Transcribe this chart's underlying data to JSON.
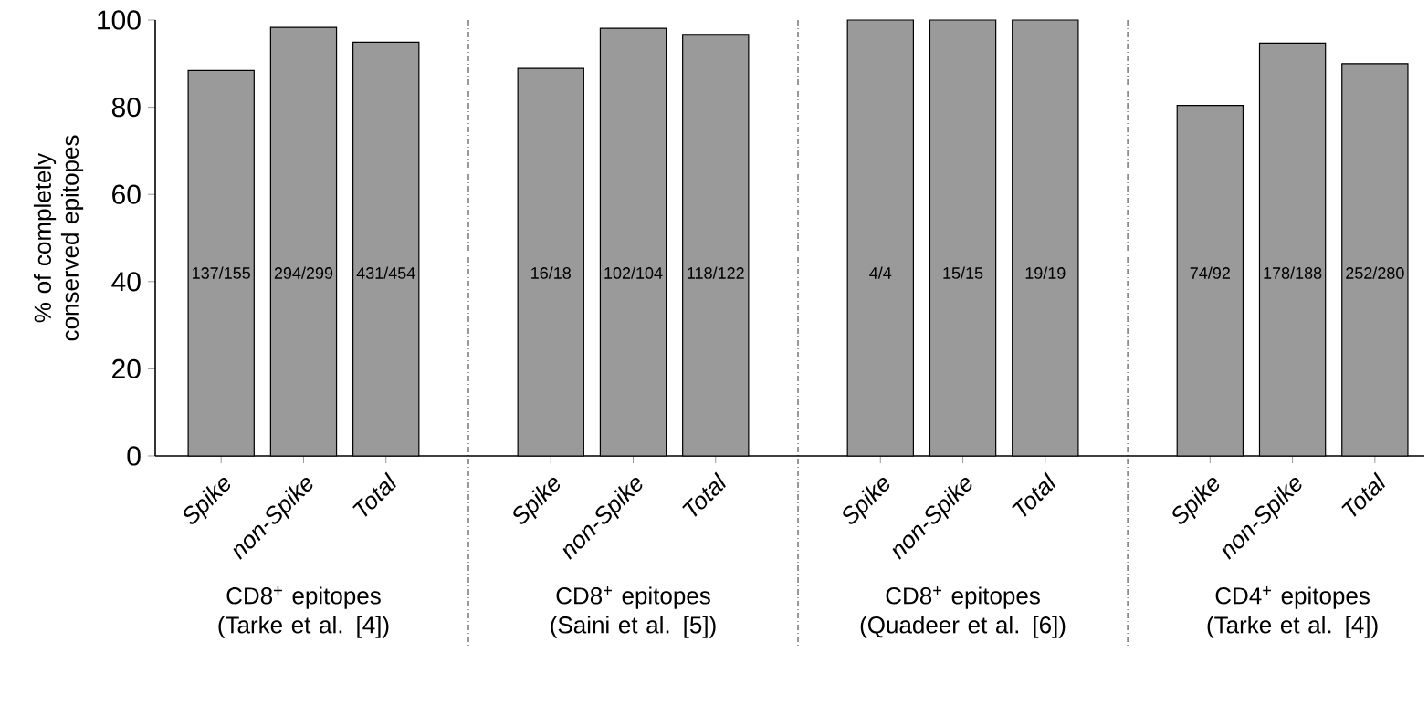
{
  "chart_data": {
    "type": "bar",
    "ylabel": "% of completely conserved epitopes",
    "categories": [
      "Spike",
      "non-Spike",
      "Total",
      null,
      "Spike",
      "non-Spike",
      "Total",
      null,
      "Spike",
      "non-Spike",
      "Total",
      null,
      "Spike",
      "non-Spike",
      "Total"
    ],
    "values": [
      88.4,
      98.3,
      94.9,
      null,
      88.9,
      98.1,
      96.7,
      null,
      100,
      100,
      100,
      null,
      80.4,
      94.7,
      90.0
    ],
    "color": "#9a9a9a",
    "grid": "x",
    "ylim": [
      0,
      100
    ],
    "yticks": [
      0,
      20,
      40,
      60,
      80,
      100
    ],
    "annotations": [
      "137/155",
      "294/299",
      "431/454",
      "16/18",
      "102/104",
      "118/122",
      "4/4",
      "15/15",
      "19/19",
      "74/92",
      "178/188",
      "252/280",
      "CD8$^{+}$ epitopes (Tarke et al. [4])",
      "CD8$^{+}$ epitopes (Saini et al. [5])",
      "CD8$^{+}$ epitopes (Quadeer et al. [6])",
      "CD4$^{+}$ epitopes (Tarke et al. [4])"
    ]
  }
}
